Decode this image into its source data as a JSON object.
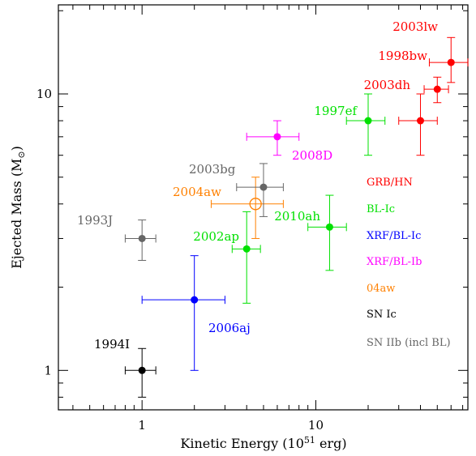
{
  "chart_data": {
    "type": "scatter",
    "xlabel_main": "Kinetic Energy (10",
    "xlabel_sup": "51",
    "xlabel_tail": " erg)",
    "ylabel_main": "Ejected Mass (M",
    "ylabel_sub": "⊙",
    "ylabel_tail": ")",
    "xscale": "log",
    "yscale": "log",
    "xlim": [
      0.33,
      75
    ],
    "ylim": [
      0.72,
      21
    ],
    "x_ticks": [
      {
        "v": 1,
        "label": "1"
      },
      {
        "v": 10,
        "label": "10"
      }
    ],
    "y_ticks": [
      {
        "v": 1,
        "label": "1"
      },
      {
        "v": 10,
        "label": "10"
      }
    ],
    "grid": false,
    "colors": {
      "grb_hn": "#ff0000",
      "bl_ic": "#00e000",
      "xrf_bl_ic": "#0000ff",
      "xrf_bl_ib": "#ff00ff",
      "04aw": "#ff8000",
      "sn_ic": "#000000",
      "sn_iib": "#666666"
    },
    "legend": {
      "position": "right",
      "entries": [
        {
          "label": "GRB/HN",
          "color_key": "grb_hn"
        },
        {
          "label": "BL-Ic",
          "color_key": "bl_ic"
        },
        {
          "label": "XRF/BL-Ic",
          "color_key": "xrf_bl_ic"
        },
        {
          "label": "XRF/BL-Ib",
          "color_key": "xrf_bl_ib"
        },
        {
          "label": "04aw",
          "color_key": "04aw"
        },
        {
          "label": "SN Ic",
          "color_key": "sn_ic"
        },
        {
          "label": "SN IIb (incl BL)",
          "color_key": "sn_iib"
        }
      ]
    },
    "points": [
      {
        "name": "2003lw",
        "x": 60,
        "y": 13,
        "xerr": [
          45,
          75
        ],
        "yerr": [
          11,
          16
        ],
        "color_key": "grb_hn",
        "marker": "filled"
      },
      {
        "name": "1998bw",
        "x": 50,
        "y": 10.4,
        "xerr": [
          42,
          58
        ],
        "yerr": [
          9.3,
          11.5
        ],
        "color_key": "grb_hn",
        "marker": "filled"
      },
      {
        "name": "2003dh",
        "x": 40,
        "y": 8,
        "xerr": [
          30,
          50
        ],
        "yerr": [
          6,
          10
        ],
        "color_key": "grb_hn",
        "marker": "filled"
      },
      {
        "name": "1997ef",
        "x": 20,
        "y": 8,
        "xerr": [
          15,
          25
        ],
        "yerr": [
          6,
          10
        ],
        "color_key": "bl_ic",
        "marker": "filled"
      },
      {
        "name": "2010ah",
        "x": 12,
        "y": 3.3,
        "xerr": [
          9,
          15
        ],
        "yerr": [
          2.3,
          4.3
        ],
        "color_key": "bl_ic",
        "marker": "filled"
      },
      {
        "name": "2002ap",
        "x": 4,
        "y": 2.75,
        "xerr": [
          3.3,
          4.8
        ],
        "yerr": [
          1.75,
          3.75
        ],
        "color_key": "bl_ic",
        "marker": "filled"
      },
      {
        "name": "2006aj",
        "x": 2,
        "y": 1.8,
        "xerr": [
          1,
          3
        ],
        "yerr": [
          1,
          2.6
        ],
        "color_key": "xrf_bl_ic",
        "marker": "filled"
      },
      {
        "name": "2008D",
        "x": 6,
        "y": 7,
        "xerr": [
          4,
          8
        ],
        "yerr": [
          6,
          8
        ],
        "color_key": "xrf_bl_ib",
        "marker": "filled"
      },
      {
        "name": "2004aw",
        "x": 4.5,
        "y": 4,
        "xerr": [
          2.5,
          6.5
        ],
        "yerr": [
          3,
          5
        ],
        "color_key": "04aw",
        "marker": "open"
      },
      {
        "name": "1994I",
        "x": 1,
        "y": 1,
        "xerr": [
          0.8,
          1.2
        ],
        "yerr": [
          0.8,
          1.2
        ],
        "color_key": "sn_ic",
        "marker": "filled"
      },
      {
        "name": "1993J",
        "x": 1,
        "y": 3,
        "xerr": [
          0.8,
          1.2
        ],
        "yerr": [
          2.5,
          3.5
        ],
        "color_key": "sn_iib",
        "marker": "filled"
      },
      {
        "name": "2003bg",
        "x": 5,
        "y": 4.6,
        "xerr": [
          3.5,
          6.5
        ],
        "yerr": [
          3.6,
          5.6
        ],
        "color_key": "sn_iib",
        "marker": "filled"
      }
    ]
  }
}
